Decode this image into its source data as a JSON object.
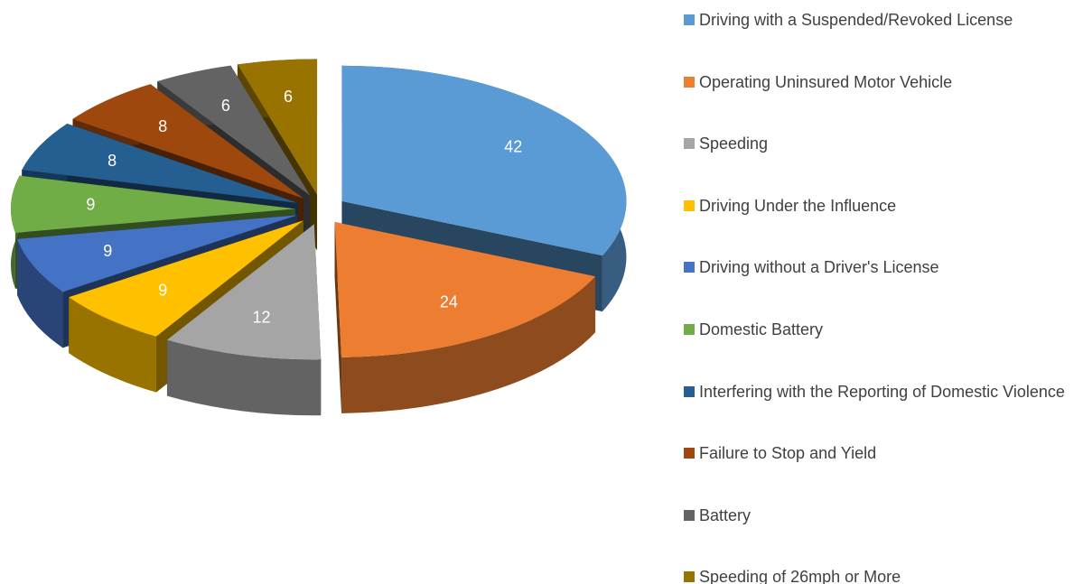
{
  "chart_data": {
    "type": "pie3d",
    "categories": [
      "Driving with a Suspended/Revoked License",
      "Operating Uninsured Motor Vehicle",
      "Speeding",
      "Driving Under the Influence",
      "Driving without a Driver's License",
      "Domestic Battery",
      "Interfering with the Reporting of Domestic Violence",
      "Failure to Stop and Yield",
      "Battery",
      "Speeding of 26mph or More"
    ],
    "values": [
      42,
      24,
      12,
      9,
      9,
      9,
      8,
      8,
      6,
      6
    ],
    "colors": [
      "#5b9bd5",
      "#ed7d31",
      "#a5a5a5",
      "#ffc000",
      "#4472c4",
      "#70ad47",
      "#255e91",
      "#9e480e",
      "#636363",
      "#997300"
    ],
    "legend": "right"
  }
}
